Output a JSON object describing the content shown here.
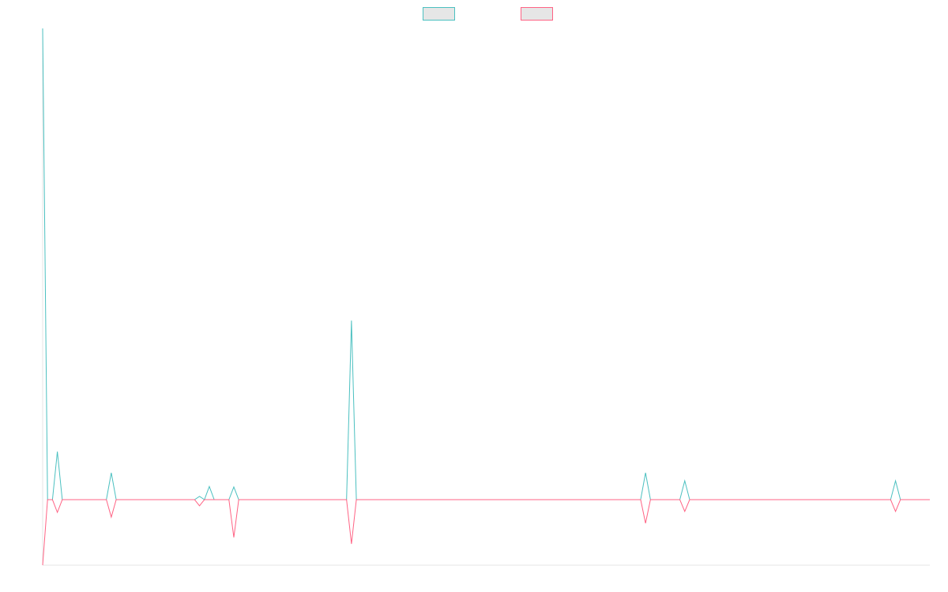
{
  "chart_data": {
    "type": "line",
    "legend": "top",
    "ylim": [
      -13.9,
      100
    ],
    "series": [
      {
        "color": "#4bc0c0",
        "values": [
          100,
          0,
          0,
          10.2,
          0,
          0,
          0,
          0,
          0,
          0,
          0,
          0,
          0,
          0,
          5.7,
          0,
          0,
          0,
          0,
          0,
          0,
          0,
          0,
          0,
          0,
          0,
          0,
          0,
          0,
          0,
          0,
          0,
          0.7,
          0,
          2.8,
          0,
          0,
          0,
          0,
          2.7,
          0,
          0,
          0,
          0,
          0,
          0,
          0,
          0,
          0,
          0,
          0,
          0,
          0,
          0,
          0,
          0,
          0,
          0,
          0,
          0,
          0,
          0,
          0,
          38,
          0,
          0,
          0,
          0,
          0,
          0,
          0,
          0,
          0,
          0,
          0,
          0,
          0,
          0,
          0,
          0,
          0,
          0,
          0,
          0,
          0,
          0,
          0,
          0,
          0,
          0,
          0,
          0,
          0,
          0,
          0,
          0,
          0,
          0,
          0,
          0,
          0,
          0,
          0,
          0,
          0,
          0,
          0,
          0,
          0,
          0,
          0,
          0,
          0,
          0,
          0,
          0,
          0,
          0,
          0,
          0,
          0,
          0,
          0,
          5.7,
          0,
          0,
          0,
          0,
          0,
          0,
          0,
          4,
          0,
          0,
          0,
          0,
          0,
          0,
          0,
          0,
          0,
          0,
          0,
          0,
          0,
          0,
          0,
          0,
          0,
          0,
          0,
          0,
          0,
          0,
          0,
          0,
          0,
          0,
          0,
          0,
          0,
          0,
          0,
          0,
          0,
          0,
          0,
          0,
          0,
          0,
          0,
          0,
          0,
          0,
          4,
          0,
          0,
          0,
          0,
          0,
          0,
          0
        ]
      },
      {
        "color": "#ff6384",
        "values": [
          -13.9,
          0,
          0,
          -2.7,
          0,
          0,
          0,
          0,
          0,
          0,
          0,
          0,
          0,
          0,
          -3.7,
          0,
          0,
          0,
          0,
          0,
          0,
          0,
          0,
          0,
          0,
          0,
          0,
          0,
          0,
          0,
          0,
          0,
          -1.3,
          0,
          0,
          0,
          0,
          0,
          0,
          -8,
          0,
          0,
          0,
          0,
          0,
          0,
          0,
          0,
          0,
          0,
          0,
          0,
          0,
          0,
          0,
          0,
          0,
          0,
          0,
          0,
          0,
          0,
          0,
          -9.4,
          0,
          0,
          0,
          0,
          0,
          0,
          0,
          0,
          0,
          0,
          0,
          0,
          0,
          0,
          0,
          0,
          0,
          0,
          0,
          0,
          0,
          0,
          0,
          0,
          0,
          0,
          0,
          0,
          0,
          0,
          0,
          0,
          0,
          0,
          0,
          0,
          0,
          0,
          0,
          0,
          0,
          0,
          0,
          0,
          0,
          0,
          0,
          0,
          0,
          0,
          0,
          0,
          0,
          0,
          0,
          0,
          0,
          0,
          0,
          -5,
          0,
          0,
          0,
          0,
          0,
          0,
          0,
          -2.5,
          0,
          0,
          0,
          0,
          0,
          0,
          0,
          0,
          0,
          0,
          0,
          0,
          0,
          0,
          0,
          0,
          0,
          0,
          0,
          0,
          0,
          0,
          0,
          0,
          0,
          0,
          0,
          0,
          0,
          0,
          0,
          0,
          0,
          0,
          0,
          0,
          0,
          0,
          0,
          0,
          0,
          0,
          -2.5,
          0,
          0,
          0,
          0,
          0,
          0,
          0
        ]
      }
    ]
  }
}
